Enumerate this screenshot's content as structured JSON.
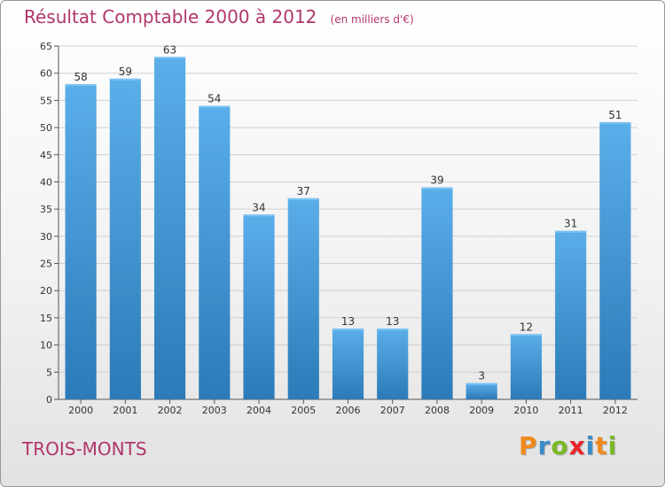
{
  "title": "Résultat Comptable 2000 à 2012",
  "subtitle": "(en milliers d'€)",
  "location": "TROIS-MONTS",
  "logo_text": "Proxiti",
  "colors": {
    "title": "#b0366a",
    "bar_top": "#5aaee9",
    "bar_bottom": "#2c7ab8",
    "logo": [
      "#f08a1c",
      "#3c8cc8",
      "#7bb928",
      "#e8262a",
      "#3c8cc8",
      "#f08a1c",
      "#7bb928"
    ]
  },
  "chart_data": {
    "type": "bar",
    "categories": [
      "2000",
      "2001",
      "2002",
      "2003",
      "2004",
      "2005",
      "2006",
      "2007",
      "2008",
      "2009",
      "2010",
      "2011",
      "2012"
    ],
    "values": [
      58,
      59,
      63,
      54,
      34,
      37,
      13,
      13,
      39,
      3,
      12,
      31,
      51
    ],
    "ylim": [
      0,
      65
    ],
    "yticks": [
      0,
      5,
      10,
      15,
      20,
      25,
      30,
      35,
      40,
      45,
      50,
      55,
      60,
      65
    ],
    "grid": true
  }
}
